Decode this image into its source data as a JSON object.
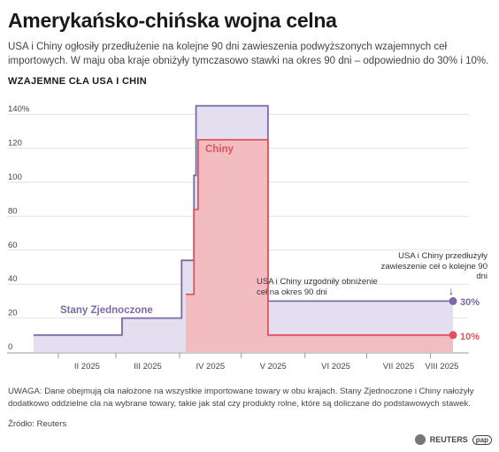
{
  "header": {
    "title": "Amerykańsko-chińska wojna celna",
    "subtitle": "USA i Chiny ogłosiły przedłużenie na kolejne 90 dni zawieszenia podwyższonych wzajemnych ceł importowych. W maju oba kraje obniżyły tymczasowo stawki na okres 90 dni – odpowiednio do 30% i 10%.",
    "section_label": "WZAJEMNE CŁA USA I CHIN"
  },
  "footer": {
    "note": "UWAGA: Dane obejmują cła nałożone na wszystkie importowane towary w obu krajach. Stany Zjednoczone i Chiny nałożyły dodatkowo oddzielne cła na wybrane towary, takie jak stal czy produkty rolne, które są doliczane do podstawowych stawek.",
    "source": "Źródło: Reuters",
    "credit_reuters": "REUTERS",
    "credit_pap": "pap"
  },
  "colors": {
    "usa_line": "#7b6aa6",
    "usa_fill": "#e4dff0",
    "china_line": "#e0535c",
    "china_fill": "#f2bcc0",
    "axis_text": "#444444",
    "grid": "#e2e2e2"
  },
  "chart_data": {
    "type": "area",
    "ylim": [
      0,
      150
    ],
    "y_ticks": [
      0,
      20,
      40,
      60,
      80,
      100,
      120,
      140
    ],
    "y_tick_labels": [
      "0",
      "20",
      "40",
      "60",
      "80",
      "100",
      "120",
      "140%"
    ],
    "x_ticks": [
      "II 2025",
      "III 2025",
      "IV 2025",
      "V 2025",
      "VI 2025",
      "VII 2025",
      "VIII 2025"
    ],
    "series": [
      {
        "name": "Stany Zjednoczone",
        "end_label": "30%",
        "steps": [
          {
            "x": "2025-01-20",
            "y": 10
          },
          {
            "x": "2025-03-04",
            "y": 20
          },
          {
            "x": "2025-04-02",
            "y": 54
          },
          {
            "x": "2025-04-08",
            "y": 104
          },
          {
            "x": "2025-04-09",
            "y": 145
          },
          {
            "x": "2025-05-14",
            "y": 30
          },
          {
            "x": "2025-08-12",
            "y": 30
          }
        ]
      },
      {
        "name": "Chiny",
        "end_label": "10%",
        "steps": [
          {
            "x": "2025-04-04",
            "y": 34
          },
          {
            "x": "2025-04-08",
            "y": 84
          },
          {
            "x": "2025-04-10",
            "y": 125
          },
          {
            "x": "2025-05-14",
            "y": 10
          },
          {
            "x": "2025-08-12",
            "y": 10
          }
        ]
      }
    ],
    "annotations": {
      "may_cut": "USA i Chiny uzgodniły obniżenie ceł na okres 90 dni",
      "extension": "USA i Chiny przedłużyły zawieszenie ceł o kolejne 90 dni",
      "arrow": "↓"
    }
  }
}
